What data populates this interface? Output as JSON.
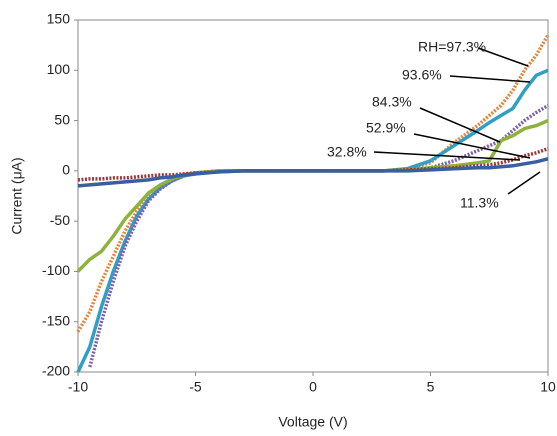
{
  "chart_data": {
    "type": "line",
    "xlabel": "Voltage (V)",
    "ylabel": "Current (μA)",
    "x": [
      -10,
      -9.5,
      -9,
      -8.5,
      -8,
      -7.5,
      -7,
      -6.5,
      -6,
      -5.5,
      -5,
      -4,
      -3,
      -2,
      -1,
      0,
      1,
      2,
      3,
      4,
      5,
      6,
      7,
      7.5,
      8,
      8.5,
      9,
      9.5,
      10
    ],
    "xlim": [
      -10,
      10
    ],
    "xticks": [
      -10,
      -5,
      0,
      5,
      10
    ],
    "ylim": [
      -200,
      150
    ],
    "yticks": [
      -200,
      -150,
      -100,
      -50,
      0,
      50,
      100,
      150
    ],
    "series": [
      {
        "name": "RH=97.3%",
        "color": "#e8833a",
        "values": [
          -160,
          -140,
          -110,
          -85,
          -60,
          -40,
          -25,
          -15,
          -8,
          -4,
          -2,
          0,
          0,
          0,
          0,
          0,
          0,
          0,
          0,
          2,
          8,
          28,
          45,
          55,
          65,
          80,
          100,
          115,
          135
        ]
      },
      {
        "name": "93.6%",
        "color": "#2f9fc6",
        "values": [
          -200,
          -175,
          -135,
          -100,
          -70,
          -45,
          -28,
          -17,
          -10,
          -5,
          -3,
          0,
          0,
          0,
          0,
          0,
          0,
          0,
          0,
          2,
          10,
          25,
          40,
          48,
          55,
          62,
          80,
          95,
          100
        ]
      },
      {
        "name": "84.3%",
        "color": "#7f5ea8",
        "values": [
          null,
          -195,
          -150,
          -110,
          -75,
          -50,
          -30,
          -18,
          -10,
          -5,
          -2,
          0,
          0,
          0,
          0,
          0,
          0,
          0,
          0,
          1,
          3,
          10,
          20,
          25,
          30,
          40,
          50,
          58,
          65
        ]
      },
      {
        "name": "52.9%",
        "color": "#8db33a",
        "values": [
          -100,
          -88,
          -80,
          -65,
          -48,
          -35,
          -22,
          -14,
          -8,
          -4,
          -2,
          0,
          0,
          0,
          0,
          0,
          0,
          0,
          0,
          1,
          3,
          5,
          8,
          10,
          30,
          35,
          42,
          45,
          50
        ]
      },
      {
        "name": "32.8%",
        "color": "#a0353a",
        "values": [
          -9,
          -8,
          -8,
          -7,
          -7,
          -6,
          -5,
          -4,
          -4,
          -3,
          -2,
          -1,
          0,
          0,
          0,
          0,
          0,
          0,
          0,
          1,
          2,
          3,
          5,
          6,
          8,
          11,
          15,
          18,
          22
        ]
      },
      {
        "name": "11.3%",
        "color": "#3a5fa0",
        "values": [
          -15,
          -14,
          -13,
          -12,
          -11,
          -10,
          -9,
          -7,
          -6,
          -4,
          -3,
          -1,
          0,
          0,
          0,
          0,
          0,
          0,
          0,
          0,
          1,
          2,
          3,
          3,
          4,
          5,
          7,
          9,
          12
        ]
      }
    ]
  }
}
